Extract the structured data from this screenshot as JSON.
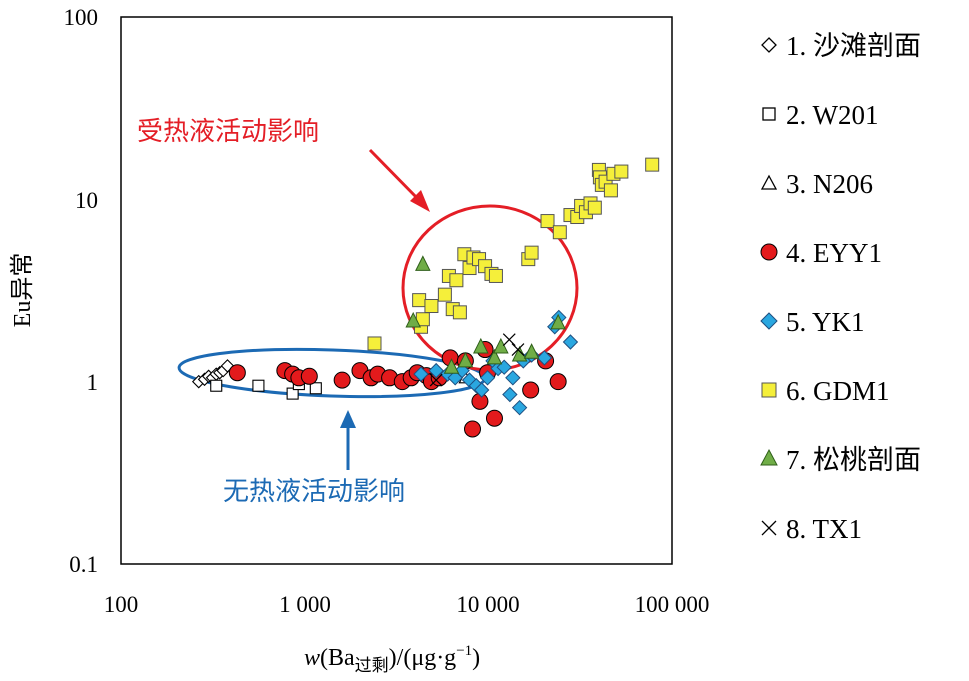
{
  "colors": {
    "red": "#e31a1c",
    "blue": "#1f5fa8",
    "blue_marker": "#2aa7e0",
    "yellow": "#f5ef3a",
    "green": "#70ad47",
    "anno_red": "#e41e26",
    "anno_blue": "#1c6ab4"
  },
  "chart_data": {
    "type": "scatter",
    "xscale": "log",
    "yscale": "log",
    "xlim": [
      100,
      100000
    ],
    "ylim": [
      0.1,
      100
    ],
    "x_ticks": [
      100,
      1000,
      10000,
      100000
    ],
    "x_tick_labels": [
      "100",
      "1 000",
      "10 000",
      "100 000"
    ],
    "y_ticks": [
      0.1,
      1,
      10,
      100
    ],
    "y_tick_labels": [
      "0.1",
      "1",
      "10",
      "100"
    ],
    "xlabel": {
      "italic": "w",
      "pre": "(Ba",
      "sub": "过剩",
      "mid": ")/(μg·g",
      "sup": "−1",
      "post": ")"
    },
    "ylabel": "Eu异常",
    "annotations": {
      "hot": "受热液活动影响",
      "nohot": "无热液活动影响"
    },
    "series": [
      {
        "name": "1. 沙滩剖面",
        "marker": "diamond-open",
        "points": [
          [
            265,
            1.0
          ],
          [
            285,
            1.03
          ],
          [
            300,
            1.07
          ],
          [
            315,
            1.05
          ],
          [
            330,
            1.1
          ],
          [
            345,
            1.12
          ],
          [
            360,
            1.15
          ],
          [
            380,
            1.22
          ]
        ]
      },
      {
        "name": "2. W201",
        "marker": "square-open",
        "points": [
          [
            330,
            0.95
          ],
          [
            560,
            0.95
          ],
          [
            860,
            0.86
          ],
          [
            930,
            0.97
          ],
          [
            1150,
            0.92
          ],
          [
            1000,
            1.05
          ]
        ]
      },
      {
        "name": "3. N206",
        "marker": "triangle-open",
        "points": [
          [
            6200,
            1.1
          ],
          [
            7500,
            1.05
          ]
        ]
      },
      {
        "name": "4. EYY1",
        "marker": "circle-red",
        "points": [
          [
            430,
            1.12
          ],
          [
            780,
            1.15
          ],
          [
            860,
            1.1
          ],
          [
            930,
            1.05
          ],
          [
            1060,
            1.07
          ],
          [
            1600,
            1.02
          ],
          [
            2000,
            1.15
          ],
          [
            2300,
            1.05
          ],
          [
            2500,
            1.1
          ],
          [
            2900,
            1.05
          ],
          [
            3400,
            1.0
          ],
          [
            3800,
            1.05
          ],
          [
            4100,
            1.12
          ],
          [
            4600,
            1.08
          ],
          [
            4900,
            1.0
          ],
          [
            5400,
            1.05
          ],
          [
            6200,
            1.35
          ],
          [
            7500,
            1.3
          ],
          [
            8200,
            0.55
          ],
          [
            9000,
            0.78
          ],
          [
            9600,
            1.5
          ],
          [
            9900,
            1.12
          ],
          [
            10800,
            0.63
          ],
          [
            17000,
            0.9
          ],
          [
            20500,
            1.3
          ],
          [
            24000,
            1.0
          ]
        ]
      },
      {
        "name": "5. YK1",
        "marker": "diamond-blue",
        "points": [
          [
            4300,
            1.1
          ],
          [
            5200,
            1.15
          ],
          [
            6000,
            1.1
          ],
          [
            6600,
            1.05
          ],
          [
            7200,
            1.15
          ],
          [
            7900,
            1.02
          ],
          [
            8600,
            0.95
          ],
          [
            9200,
            0.9
          ],
          [
            9900,
            1.05
          ],
          [
            10600,
            1.3
          ],
          [
            11300,
            1.18
          ],
          [
            12200,
            1.2
          ],
          [
            13100,
            0.85
          ],
          [
            13600,
            1.05
          ],
          [
            14800,
            0.72
          ],
          [
            15500,
            1.3
          ],
          [
            17200,
            1.4
          ],
          [
            20200,
            1.35
          ],
          [
            23000,
            2.0
          ],
          [
            24200,
            2.25
          ],
          [
            28000,
            1.65
          ]
        ]
      },
      {
        "name": "6. GDM1",
        "marker": "square-yellow",
        "points": [
          [
            2400,
            1.62
          ],
          [
            4200,
            2.8
          ],
          [
            4300,
            2.0
          ],
          [
            4400,
            2.2
          ],
          [
            4900,
            2.6
          ],
          [
            5800,
            3.0
          ],
          [
            6100,
            3.8
          ],
          [
            6400,
            2.5
          ],
          [
            6700,
            3.6
          ],
          [
            7000,
            2.4
          ],
          [
            7400,
            5.0
          ],
          [
            7900,
            4.2
          ],
          [
            8300,
            4.8
          ],
          [
            8900,
            4.7
          ],
          [
            9600,
            4.3
          ],
          [
            10400,
            3.9
          ],
          [
            11000,
            3.8
          ],
          [
            16500,
            4.7
          ],
          [
            17200,
            5.1
          ],
          [
            21000,
            7.6
          ],
          [
            24500,
            6.6
          ],
          [
            28000,
            8.2
          ],
          [
            30500,
            8.0
          ],
          [
            32000,
            9.2
          ],
          [
            34000,
            8.5
          ],
          [
            36000,
            9.5
          ],
          [
            38000,
            9.0
          ],
          [
            40000,
            14.5
          ],
          [
            40500,
            13.2
          ],
          [
            41500,
            12.0
          ],
          [
            43500,
            12.5
          ],
          [
            46500,
            11.2
          ],
          [
            48000,
            13.8
          ],
          [
            53000,
            14.2
          ],
          [
            78000,
            15.5
          ]
        ]
      },
      {
        "name": "7. 松桃剖面",
        "marker": "triangle-green",
        "points": [
          [
            3900,
            2.15
          ],
          [
            4400,
            4.4
          ],
          [
            6300,
            1.2
          ],
          [
            7500,
            1.3
          ],
          [
            9100,
            1.55
          ],
          [
            10800,
            1.35
          ],
          [
            11700,
            1.55
          ],
          [
            14800,
            1.4
          ],
          [
            17200,
            1.45
          ],
          [
            24000,
            2.1
          ]
        ]
      },
      {
        "name": "8. TX1",
        "marker": "x",
        "points": [
          [
            5200,
            1.02
          ],
          [
            13000,
            1.7
          ],
          [
            14500,
            1.5
          ]
        ]
      }
    ]
  }
}
